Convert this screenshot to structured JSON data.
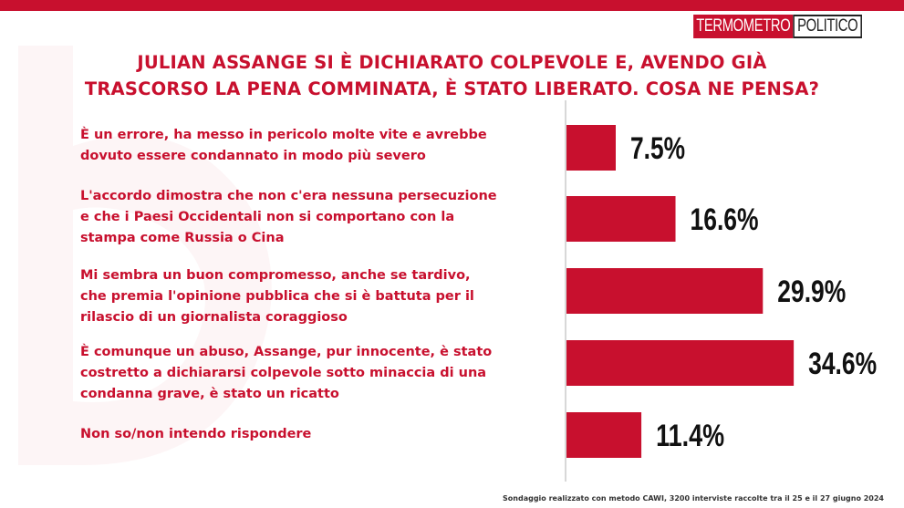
{
  "brand": {
    "part1": "TERMOMETRO",
    "part2": "POLITICO"
  },
  "title_lines": [
    "JULIAN ASSANGE SI È DICHIARATO COLPEVOLE E, AVENDO GIÀ",
    "TRASCORSO LA PENA COMMINATA, È STATO LIBERATO. COSA NE PENSA?"
  ],
  "answers": [
    {
      "lines": [
        "È un errore, ha messo in pericolo molte vite e avrebbe",
        "dovuto essere condannato in modo più severo"
      ]
    },
    {
      "lines": [
        "L'accordo dimostra che non c'era nessuna persecuzione",
        "e che i Paesi Occidentali non si comportano con la",
        "stampa come Russia o Cina"
      ]
    },
    {
      "lines": [
        "Mi sembra un buon compromesso, anche se tardivo,",
        "che premia l'opinione pubblica che si è battuta per il",
        "rilascio di un giornalista coraggioso"
      ]
    },
    {
      "lines": [
        "È comunque un abuso, Assange, pur innocente, è stato",
        "costretto a dichiararsi colpevole sotto minaccia di una",
        "condanna grave, è stato un ricatto"
      ]
    },
    {
      "lines": [
        "Non so/non intendo rispondere"
      ]
    }
  ],
  "chart_data": {
    "type": "bar",
    "orientation": "horizontal",
    "categories": [
      "È un errore, ha messo in pericolo molte vite e avrebbe dovuto essere condannato in modo più severo",
      "L'accordo dimostra che non c'era nessuna persecuzione e che i Paesi Occidentali non si comportano con la stampa come Russia o Cina",
      "Mi sembra un buon compromesso, anche se tardivo, che premia l'opinione pubblica che si è battuta per il rilascio di un giornalista coraggioso",
      "È comunque un abuso, Assange, pur innocente, è stato costretto a dichiararsi colpevole sotto minaccia di una condanna grave, è stato un ricatto",
      "Non so/non intendo rispondere"
    ],
    "values": [
      7.5,
      16.6,
      29.9,
      34.6,
      11.4
    ],
    "value_labels": [
      "7.5%",
      "16.6%",
      "29.9%",
      "34.6%",
      "11.4%"
    ],
    "unit": "%",
    "bar_color": "#c8102e",
    "grid": false,
    "legend": "none"
  },
  "footer": "Sondaggio realizzato con metodo CAWI, 3200 interviste raccolte tra il 25 e il 27 giugno 2024",
  "colors": {
    "accent": "#c8102e",
    "background": "#ffffff",
    "label": "#111111"
  }
}
